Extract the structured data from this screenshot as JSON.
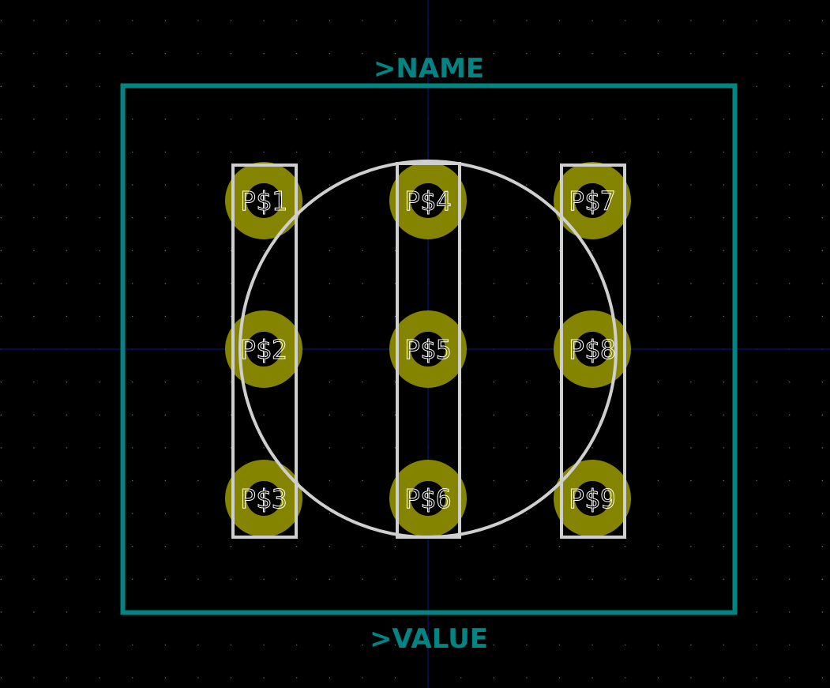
{
  "footprint": {
    "name_label": ">NAME",
    "value_label": ">VALUE"
  },
  "pads": [
    {
      "label": "P$1"
    },
    {
      "label": "P$2"
    },
    {
      "label": "P$3"
    },
    {
      "label": "P$4"
    },
    {
      "label": "P$5"
    },
    {
      "label": "P$6"
    },
    {
      "label": "P$7"
    },
    {
      "label": "P$8"
    },
    {
      "label": "P$9"
    }
  ],
  "colors": {
    "background": "#000000",
    "courtyard": "#008484",
    "silkscreen": "#cfcfcf",
    "pad": "#848400",
    "pad_text": "#ffffff",
    "axis": "#0a1a8c",
    "grid_dot": "#7a7a7a"
  }
}
